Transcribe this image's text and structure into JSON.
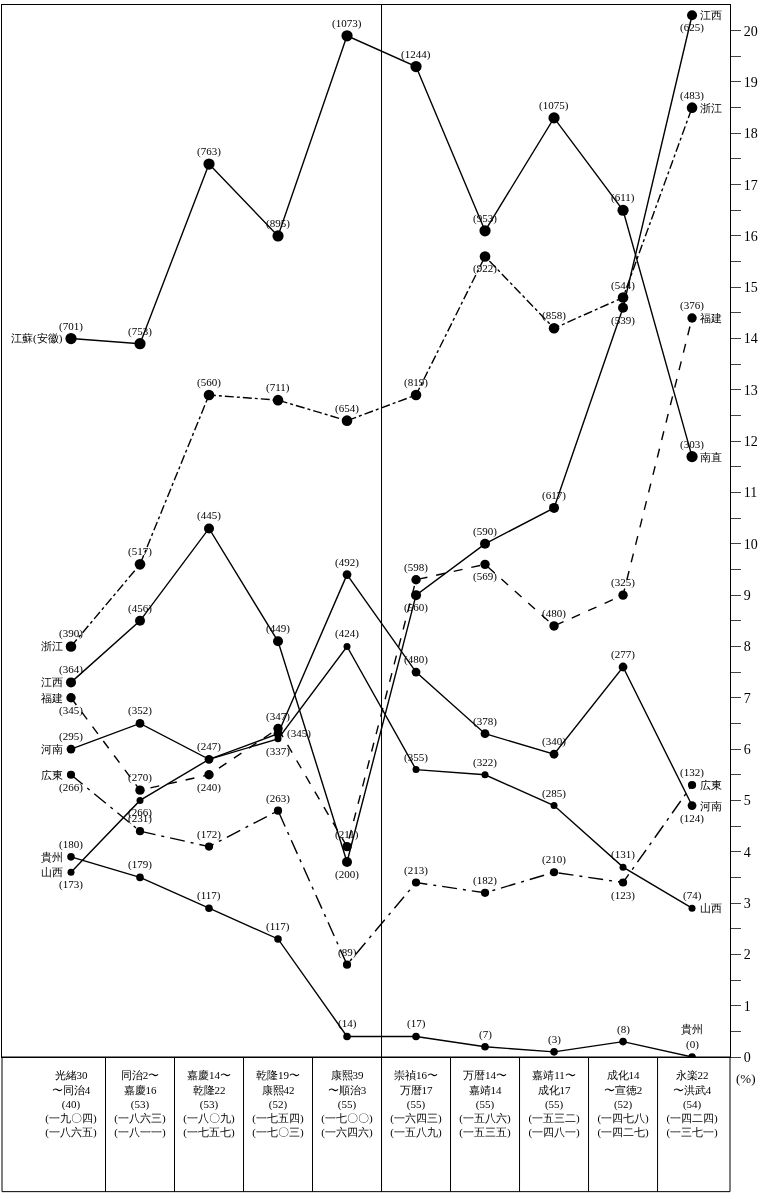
{
  "chart_data": {
    "type": "line",
    "ylabel": "(%)",
    "categories": [
      "光緒30〜同治4 (40) (一九〇四) (一八六五)",
      "同治2〜嘉慶16 (53) (一八六三) (一八一一)",
      "嘉慶14〜乾隆22 (53) (一八〇九) (一七五七)",
      "乾隆19〜康熙42 (52) (一七五四) (一七〇三)",
      "康熙39〜順治3 (55) (一七〇〇) (一六四六)",
      "崇禎16〜万暦17 (55) (一六四三) (一五八九)",
      "万暦14〜嘉靖14 (55) (一五八六) (一五三五)",
      "嘉靖11〜成化17 (55) (一五三二) (一四八一)",
      "成化14〜宣徳2 (52) (一四七八) (一四二七)",
      "永楽22〜洪武4 (54) (一四二四) (一三七一)"
    ],
    "series": [
      {
        "name": "江蘇(安徽)",
        "color": "#000000",
        "line_style": "solid",
        "values": [
          14.0,
          13.9,
          17.4,
          16.0,
          19.9,
          19.3,
          16.1,
          18.3,
          16.5,
          11.7
        ]
      },
      {
        "name": "浙江",
        "color": "#000000",
        "line_style": "dashdot",
        "values": [
          8.0,
          9.6,
          12.9,
          12.8,
          12.4,
          12.9,
          15.6,
          14.2,
          14.8,
          18.5
        ]
      },
      {
        "name": "江西",
        "color": "#000000",
        "line_style": "solid",
        "values": [
          7.3,
          8.5,
          10.3,
          8.1,
          3.8,
          9.0,
          10.0,
          10.7,
          14.6,
          20.3
        ]
      },
      {
        "name": "福建",
        "color": "#000000",
        "line_style": "dashed",
        "values": [
          7.0,
          5.2,
          5.5,
          6.4,
          4.1,
          9.3,
          9.6,
          8.4,
          9.0,
          14.4
        ]
      },
      {
        "name": "河南",
        "color": "#000000",
        "line_style": "solid",
        "values": [
          6.0,
          6.5,
          5.8,
          6.3,
          9.4,
          7.5,
          6.3,
          5.9,
          7.6,
          4.9
        ]
      },
      {
        "name": "広東",
        "color": "#000000",
        "line_style": "longdashdot",
        "values": [
          5.5,
          4.4,
          4.1,
          4.8,
          1.8,
          3.4,
          3.2,
          3.6,
          3.4,
          5.3
        ]
      },
      {
        "name": "貴州",
        "color": "#000000",
        "line_style": "solid",
        "values": [
          3.9,
          3.5,
          2.9,
          2.3,
          0.4,
          0.4,
          0.2,
          0.1,
          0.3,
          0.0
        ]
      },
      {
        "name": "山西",
        "color": "#000000",
        "line_style": "solid",
        "values": [
          3.6,
          5.0,
          5.8,
          6.2,
          8.0,
          5.6,
          5.5,
          4.9,
          3.7,
          2.9
        ]
      }
    ],
    "annotations": [
      {
        "text": "南直",
        "x": "永楽22〜洪武4 (54) (一四二四) (一三七一)",
        "y": 11.7
      },
      {
        "text": "(701)",
        "x": "光緒30〜同治4 (40) (一九〇四) (一八六五)",
        "y": 14.0
      },
      {
        "text": "(753)",
        "x": "同治2〜嘉慶16 (53) (一八六三) (一八一一)",
        "y": 13.9
      },
      {
        "text": "(763)",
        "x": "嘉慶14〜乾隆22 (53) (一八〇九) (一七五七)",
        "y": 17.4
      },
      {
        "text": "(895)",
        "x": "乾隆19〜康熙42 (52) (一七五四) (一七〇三)",
        "y": 16.0
      },
      {
        "text": "(1073)",
        "x": "康熙39〜順治3 (55) (一七〇〇) (一六四六)",
        "y": 19.9
      },
      {
        "text": "(1244)",
        "x": "崇禎16〜万暦17 (55) (一六四三) (一五八九)",
        "y": 19.3
      },
      {
        "text": "(953)",
        "x": "万暦14〜嘉靖14 (55) (一五八六) (一五三五)",
        "y": 16.1
      },
      {
        "text": "(1075)",
        "x": "嘉靖11〜成化17 (55) (一五三二) (一四八一)",
        "y": 18.3
      },
      {
        "text": "(611)",
        "x": "成化14〜宣徳2 (52) (一四七八) (一四二七)",
        "y": 16.5
      },
      {
        "text": "(303)",
        "x": "永楽22〜洪武4 (54) (一四二四) (一三七一)",
        "y": 11.7
      },
      {
        "text": "(390)",
        "x": "光緒30〜同治4 (40) (一九〇四) (一八六五)",
        "y": 8.0
      },
      {
        "text": "(517)",
        "x": "同治2〜嘉慶16 (53) (一八六三) (一八一一)",
        "y": 9.6
      },
      {
        "text": "(560)",
        "x": "嘉慶14〜乾隆22 (53) (一八〇九) (一七五七)",
        "y": 12.9
      },
      {
        "text": "(711)",
        "x": "乾隆19〜康熙42 (52) (一七五四) (一七〇三)",
        "y": 12.8
      },
      {
        "text": "(654)",
        "x": "康熙39〜順治3 (55) (一七〇〇) (一六四六)",
        "y": 12.4
      },
      {
        "text": "(819)",
        "x": "崇禎16〜万暦17 (55) (一六四三) (一五八九)",
        "y": 12.9
      },
      {
        "text": "(922)",
        "x": "万暦14〜嘉靖14 (55) (一五八六) (一五三五)",
        "y": 15.6
      },
      {
        "text": "(858)",
        "x": "嘉靖11〜成化17 (55) (一五三二) (一四八一)",
        "y": 14.2
      },
      {
        "text": "(544)",
        "x": "成化14〜宣徳2 (52) (一四七八) (一四二七)",
        "y": 14.8
      },
      {
        "text": "(483)",
        "x": "永楽22〜洪武4 (54) (一四二四) (一三七一)",
        "y": 18.5
      },
      {
        "text": "(364)",
        "x": "光緒30〜同治4 (40) (一九〇四) (一八六五)",
        "y": 7.3
      },
      {
        "text": "(456)",
        "x": "同治2〜嘉慶16 (53) (一八六三) (一八一一)",
        "y": 8.5
      },
      {
        "text": "(445)",
        "x": "嘉慶14〜乾隆22 (53) (一八〇九) (一七五七)",
        "y": 10.3
      },
      {
        "text": "(449)",
        "x": "乾隆19〜康熙42 (52) (一七五四) (一七〇三)",
        "y": 8.1
      },
      {
        "text": "(200)",
        "x": "康熙39〜順治3 (55) (一七〇〇) (一六四六)",
        "y": 3.8
      },
      {
        "text": "(560)",
        "x": "崇禎16〜万暦17 (55) (一六四三) (一五八九)",
        "y": 9.0
      },
      {
        "text": "(590)",
        "x": "万暦14〜嘉靖14 (55) (一五八六) (一五三五)",
        "y": 10.0
      },
      {
        "text": "(617)",
        "x": "嘉靖11〜成化17 (55) (一五三二) (一四八一)",
        "y": 10.7
      },
      {
        "text": "(539)",
        "x": "成化14〜宣徳2 (52) (一四七八) (一四二七)",
        "y": 14.6
      },
      {
        "text": "(625)",
        "x": "永楽22〜洪武4 (54) (一四二四) (一三七一)",
        "y": 20.3
      },
      {
        "text": "(345)",
        "x": "光緒30〜同治4 (40) (一九〇四) (一八六五)",
        "y": 7.0
      },
      {
        "text": "(270)",
        "x": "同治2〜嘉慶16 (53) (一八六三) (一八一一)",
        "y": 5.2
      },
      {
        "text": "(240)",
        "x": "嘉慶14〜乾隆22 (53) (一八〇九) (一七五七)",
        "y": 5.5
      },
      {
        "text": "(347)",
        "x": "乾隆19〜康熙42 (52) (一七五四) (一七〇三)",
        "y": 6.4
      },
      {
        "text": "(211)",
        "x": "康熙39〜順治3 (55) (一七〇〇) (一六四六)",
        "y": 4.1
      },
      {
        "text": "(598)",
        "x": "崇禎16〜万暦17 (55) (一六四三) (一五八九)",
        "y": 9.3
      },
      {
        "text": "(569)",
        "x": "万暦14〜嘉靖14 (55) (一五八六) (一五三五)",
        "y": 9.6
      },
      {
        "text": "(480)",
        "x": "嘉靖11〜成化17 (55) (一五三二) (一四八一)",
        "y": 8.4
      },
      {
        "text": "(325)",
        "x": "成化14〜宣徳2 (52) (一四七八) (一四二七)",
        "y": 9.0
      },
      {
        "text": "(376)",
        "x": "永楽22〜洪武4 (54) (一四二四) (一三七一)",
        "y": 14.4
      },
      {
        "text": "(295)",
        "x": "光緒30〜同治4 (40) (一九〇四) (一八六五)",
        "y": 6.0
      },
      {
        "text": "(352)",
        "x": "同治2〜嘉慶16 (53) (一八六三) (一八一一)",
        "y": 6.5
      },
      {
        "text": "(345)",
        "x": "乾隆19〜康熙42 (52) (一七五四) (一七〇三)",
        "y": 6.3
      },
      {
        "text": "(492)",
        "x": "康熙39〜順治3 (55) (一七〇〇) (一六四六)",
        "y": 9.4
      },
      {
        "text": "(480)",
        "x": "崇禎16〜万暦17 (55) (一六四三) (一五八九)",
        "y": 7.5
      },
      {
        "text": "(378)",
        "x": "万暦14〜嘉靖14 (55) (一五八六) (一五三五)",
        "y": 6.3
      },
      {
        "text": "(340)",
        "x": "嘉靖11〜成化17 (55) (一五三二) (一四八一)",
        "y": 5.9
      },
      {
        "text": "(277)",
        "x": "成化14〜宣徳2 (52) (一四七八) (一四二七)",
        "y": 7.6
      },
      {
        "text": "(124)",
        "x": "永楽22〜洪武4 (54) (一四二四) (一三七一)",
        "y": 4.9
      },
      {
        "text": "(266)",
        "x": "光緒30〜同治4 (40) (一九〇四) (一八六五)",
        "y": 5.5
      },
      {
        "text": "(231)",
        "x": "同治2〜嘉慶16 (53) (一八六三) (一八一一)",
        "y": 4.4
      },
      {
        "text": "(172)",
        "x": "嘉慶14〜乾隆22 (53) (一八〇九) (一七五七)",
        "y": 4.1
      },
      {
        "text": "(263)",
        "x": "乾隆19〜康熙42 (52) (一七五四) (一七〇三)",
        "y": 4.8
      },
      {
        "text": "(89)",
        "x": "康熙39〜順治3 (55) (一七〇〇) (一六四六)",
        "y": 1.8
      },
      {
        "text": "(213)",
        "x": "崇禎16〜万暦17 (55) (一六四三) (一五八九)",
        "y": 3.4
      },
      {
        "text": "(182)",
        "x": "万暦14〜嘉靖14 (55) (一五八六) (一五三五)",
        "y": 3.2
      },
      {
        "text": "(210)",
        "x": "嘉靖11〜成化17 (55) (一五三二) (一四八一)",
        "y": 3.6
      },
      {
        "text": "(123)",
        "x": "成化14〜宣徳2 (52) (一四七八) (一四二七)",
        "y": 3.4
      },
      {
        "text": "(132)",
        "x": "永楽22〜洪武4 (54) (一四二四) (一三七一)",
        "y": 5.3
      },
      {
        "text": "(180)",
        "x": "光緒30〜同治4 (40) (一九〇四) (一八六五)",
        "y": 3.9
      },
      {
        "text": "(179)",
        "x": "同治2〜嘉慶16 (53) (一八六三) (一八一一)",
        "y": 3.5
      },
      {
        "text": "(117)",
        "x": "嘉慶14〜乾隆22 (53) (一八〇九) (一七五七)",
        "y": 2.9
      },
      {
        "text": "(117)",
        "x": "乾隆19〜康熙42 (52) (一七五四) (一七〇三)",
        "y": 2.3
      },
      {
        "text": "(14)",
        "x": "康熙39〜順治3 (55) (一七〇〇) (一六四六)",
        "y": 0.4
      },
      {
        "text": "(17)",
        "x": "崇禎16〜万暦17 (55) (一六四三) (一五八九)",
        "y": 0.4
      },
      {
        "text": "(7)",
        "x": "万暦14〜嘉靖14 (55) (一五八六) (一五三五)",
        "y": 0.2
      },
      {
        "text": "(3)",
        "x": "嘉靖11〜成化17 (55) (一五三二) (一四八一)",
        "y": 0.1
      },
      {
        "text": "(8)",
        "x": "成化14〜宣徳2 (52) (一四七八) (一四二七)",
        "y": 0.3
      },
      {
        "text": "(0)",
        "x": "永楽22〜洪武4 (54) (一四二四) (一三七一)",
        "y": 0.0
      },
      {
        "text": "(173)",
        "x": "光緒30〜同治4 (40) (一九〇四) (一八六五)",
        "y": 3.6
      },
      {
        "text": "(266)",
        "x": "同治2〜嘉慶16 (53) (一八六三) (一八一一)",
        "y": 5.0
      },
      {
        "text": "(247)",
        "x": "嘉慶14〜乾隆22 (53) (一八〇九) (一七五七)",
        "y": 5.8
      },
      {
        "text": "(337)",
        "x": "乾隆19〜康熙42 (52) (一七五四) (一七〇三)",
        "y": 6.2
      },
      {
        "text": "(424)",
        "x": "康熙39〜順治3 (55) (一七〇〇) (一六四六)",
        "y": 8.0
      },
      {
        "text": "(355)",
        "x": "崇禎16〜万暦17 (55) (一六四三) (一五八九)",
        "y": 5.6
      },
      {
        "text": "(322)",
        "x": "万暦14〜嘉靖14 (55) (一五八六) (一五三五)",
        "y": 5.5
      },
      {
        "text": "(285)",
        "x": "嘉靖11〜成化17 (55) (一五三二) (一四八一)",
        "y": 4.9
      },
      {
        "text": "(131)",
        "x": "成化14〜宣徳2 (52) (一四七八) (一四二七)",
        "y": 3.7
      },
      {
        "text": "(74)",
        "x": "永楽22〜洪武4 (54) (一四二四) (一三七一)",
        "y": 2.9
      }
    ],
    "ylim": [
      0,
      20.5
    ],
    "yticks": [
      0,
      {
        "value": 0.5,
        "label": null
      },
      1,
      {
        "value": 1.5,
        "label": null
      },
      2,
      {
        "value": 2.5,
        "label": null
      },
      3,
      {
        "value": 3.5,
        "label": null
      },
      4,
      {
        "value": 4.5,
        "label": null
      },
      5,
      {
        "value": 5.5,
        "label": null
      },
      6,
      {
        "value": 6.5,
        "label": null
      },
      7,
      {
        "value": 7.5,
        "label": null
      },
      8,
      {
        "value": 8.5,
        "label": null
      },
      9,
      {
        "value": 9.5,
        "label": null
      },
      10,
      {
        "value": 10.5,
        "label": null
      },
      11,
      {
        "value": 11.5,
        "label": null
      },
      12,
      {
        "value": 12.5,
        "label": null
      },
      13,
      {
        "value": 13.5,
        "label": null
      },
      14,
      {
        "value": 14.5,
        "label": null
      },
      15,
      {
        "value": 15.5,
        "label": null
      },
      16,
      {
        "value": 16.5,
        "label": null
      },
      17,
      {
        "value": 17.5,
        "label": null
      },
      18,
      {
        "value": 18.5,
        "label": null
      },
      19,
      {
        "value": 19.5,
        "label": null
      },
      20
    ],
    "marker": "circle",
    "legend": false
  }
}
